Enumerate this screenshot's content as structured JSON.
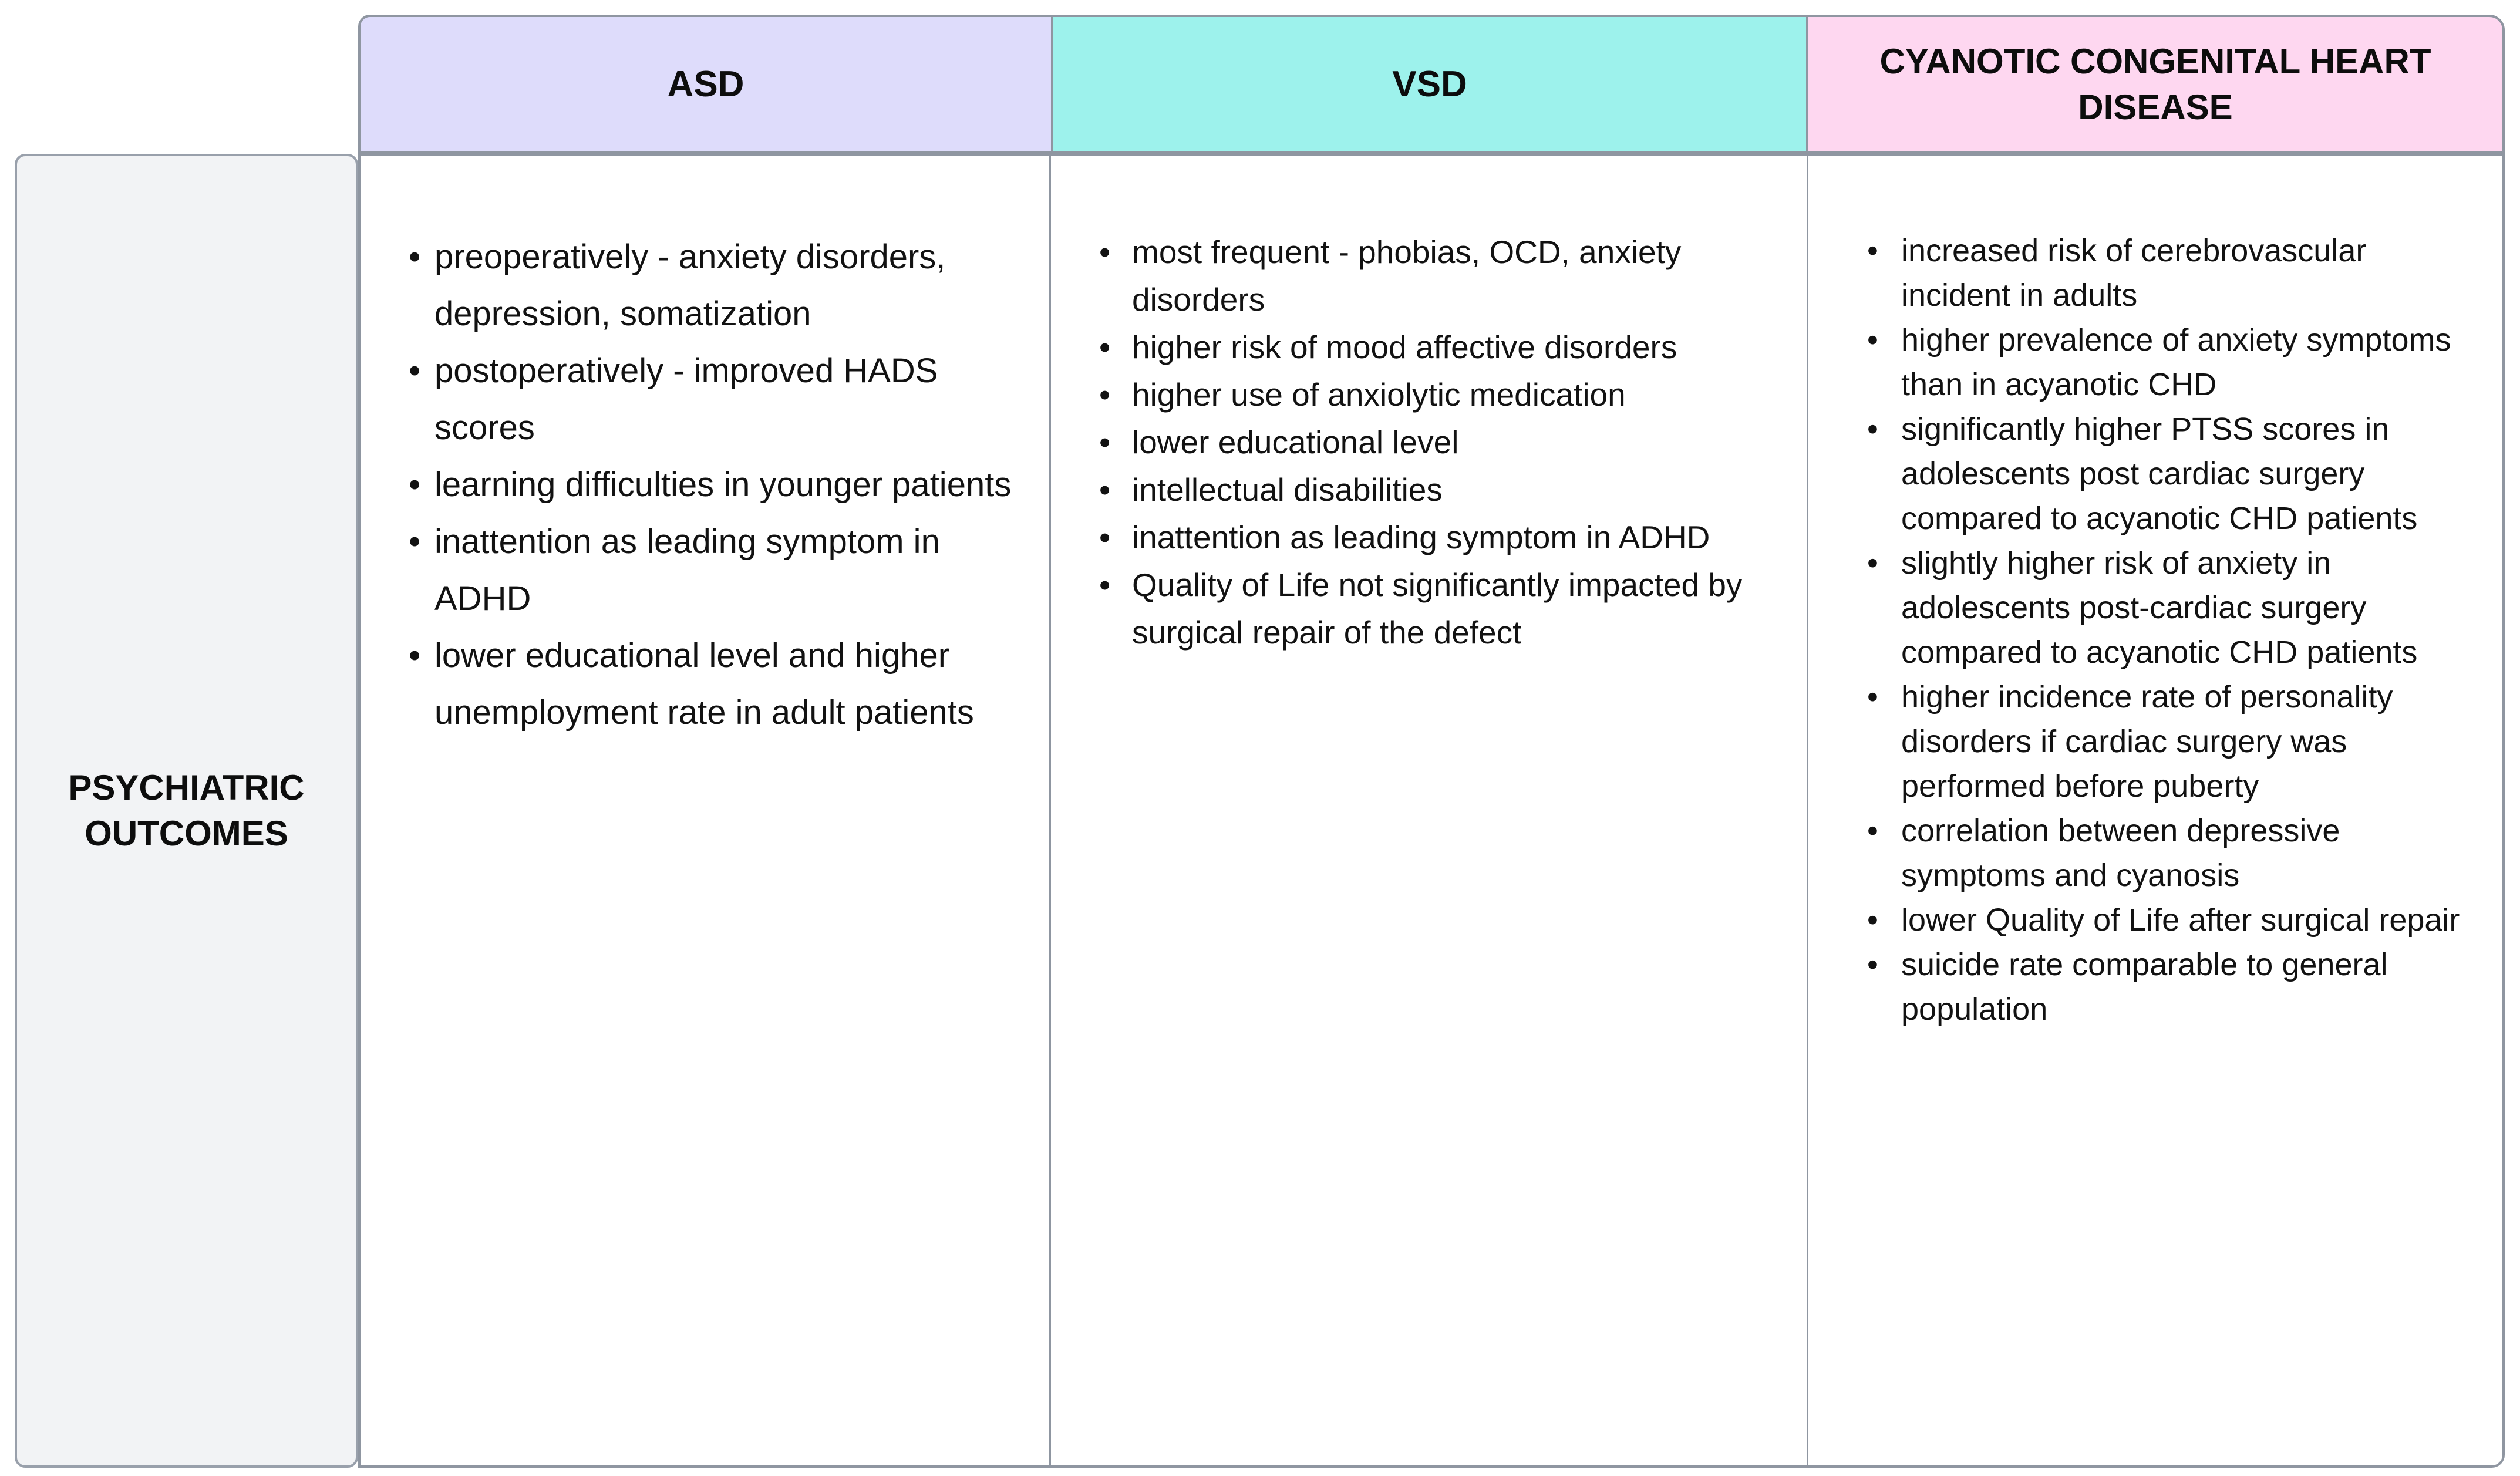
{
  "page": {
    "background": "#ffffff",
    "border_color": "#8f96a1",
    "text_color": "#121212"
  },
  "table": {
    "row_label": "PSYCHIATRIC OUTCOMES",
    "row_label_bg": "#f2f3f5",
    "bullet_icon": "•",
    "columns": [
      {
        "header": "ASD",
        "header_bg": "#dedcfb",
        "items": [
          "preoperatively - anxiety disorders, depression, somatization",
          "postoperatively - improved HADS scores",
          "learning difficulties in younger patients",
          "inattention as leading symptom in ADHD",
          "lower educational level and higher unemployment rate in adult patients"
        ]
      },
      {
        "header": "VSD",
        "header_bg": "#9df2ec",
        "items": [
          "most frequent - phobias, OCD, anxiety disorders",
          "higher risk of mood affective disorders",
          "higher use of anxiolytic medication",
          "lower educational level",
          "intellectual disabilities",
          "inattention as leading symptom in ADHD",
          "Quality of Life not significantly impacted by surgical repair of the defect"
        ]
      },
      {
        "header": "CYANOTIC CONGENITAL HEART DISEASE",
        "header_bg": "#fed7f0",
        "items": [
          "increased risk of cerebrovascular incident in adults",
          "higher prevalence of anxiety symptoms than in acyanotic CHD",
          "significantly higher PTSS scores in adolescents post cardiac surgery compared to acyanotic CHD patients",
          "slightly higher risk of anxiety in adolescents post-cardiac surgery compared to acyanotic CHD patients",
          "higher incidence rate of personality disorders if cardiac surgery was performed before puberty",
          "correlation between depressive symptoms and cyanosis",
          "lower Quality of Life after surgical repair",
          "suicide rate comparable to general population"
        ]
      }
    ]
  }
}
